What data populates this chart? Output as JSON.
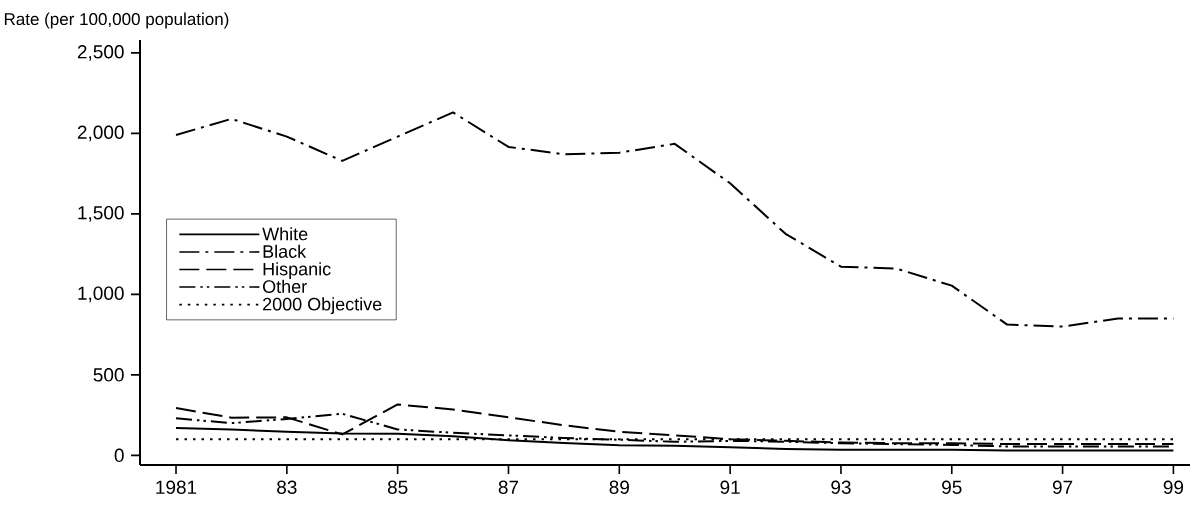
{
  "chart_data": {
    "type": "line",
    "ylabel": "Rate (per 100,000 population)",
    "x": [
      1981,
      1982,
      1983,
      1984,
      1985,
      1986,
      1987,
      1988,
      1989,
      1990,
      1991,
      1992,
      1993,
      1994,
      1995,
      1996,
      1997,
      1998,
      1999
    ],
    "series": [
      {
        "name": "White",
        "color": "#000000",
        "line_style": "solid",
        "values": [
          170,
          161,
          146,
          136,
          134,
          118,
          93,
          76,
          63,
          59,
          50,
          40,
          35,
          35,
          35,
          30,
          30,
          30,
          30
        ]
      },
      {
        "name": "Black",
        "color": "#000000",
        "line_style": "dashdot",
        "values": [
          1990,
          2090,
          1980,
          1829,
          1980,
          2130,
          1916,
          1870,
          1880,
          1935,
          1690,
          1376,
          1172,
          1160,
          1054,
          812,
          800,
          850,
          850
        ]
      },
      {
        "name": "Hispanic",
        "color": "#000000",
        "line_style": "dashed",
        "values": [
          294,
          234,
          236,
          130,
          316,
          285,
          236,
          187,
          146,
          124,
          100,
          90,
          80,
          75,
          75,
          70,
          70,
          70,
          70
        ]
      },
      {
        "name": "Other",
        "color": "#000000",
        "line_style": "dashdotdot",
        "values": [
          230,
          200,
          226,
          258,
          161,
          140,
          124,
          108,
          97,
          84,
          90,
          85,
          75,
          70,
          65,
          55,
          55,
          55,
          55
        ]
      },
      {
        "name": "2000 Objective",
        "color": "#000000",
        "line_style": "dotted",
        "values": [
          100,
          100,
          100,
          100,
          100,
          100,
          100,
          100,
          100,
          100,
          100,
          100,
          100,
          100,
          100,
          100,
          100,
          100,
          100
        ]
      }
    ],
    "xlim": [
      1980.35,
      1999.3
    ],
    "xticks": [
      1981,
      {
        "value": 1983,
        "label": "83"
      },
      {
        "value": 1985,
        "label": "85"
      },
      {
        "value": 1987,
        "label": "87"
      },
      {
        "value": 1989,
        "label": "89"
      },
      {
        "value": 1991,
        "label": "91"
      },
      {
        "value": 1993,
        "label": "93"
      },
      {
        "value": 1995,
        "label": "95"
      },
      {
        "value": 1997,
        "label": "97"
      },
      {
        "value": 1999,
        "label": "99"
      }
    ],
    "ylim": [
      -60,
      2580
    ],
    "yticks": [
      0,
      500,
      {
        "value": 1000,
        "label": "1,000"
      },
      {
        "value": 1500,
        "label": "1,500"
      },
      {
        "value": 2000,
        "label": "2,000"
      },
      {
        "value": 2500,
        "label": "2,500"
      }
    ],
    "grid": false,
    "legend": "left"
  }
}
